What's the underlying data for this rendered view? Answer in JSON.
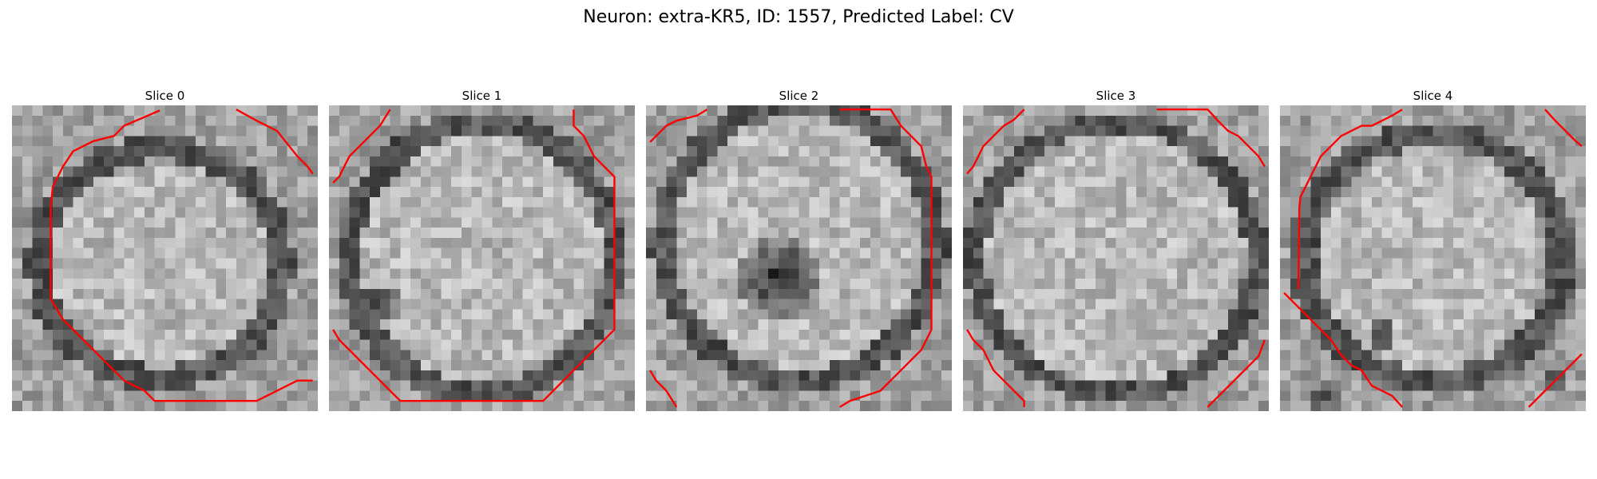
{
  "figure": {
    "title": "Neuron: extra-KR5, ID: 1557, Predicted Label: CV"
  },
  "panels": [
    {
      "title": "Slice 0"
    },
    {
      "title": "Slice 1"
    },
    {
      "title": "Slice 2"
    },
    {
      "title": "Slice 3"
    },
    {
      "title": "Slice 4"
    }
  ],
  "colors": {
    "contour": "#ff0000",
    "background": "#ffffff"
  }
}
